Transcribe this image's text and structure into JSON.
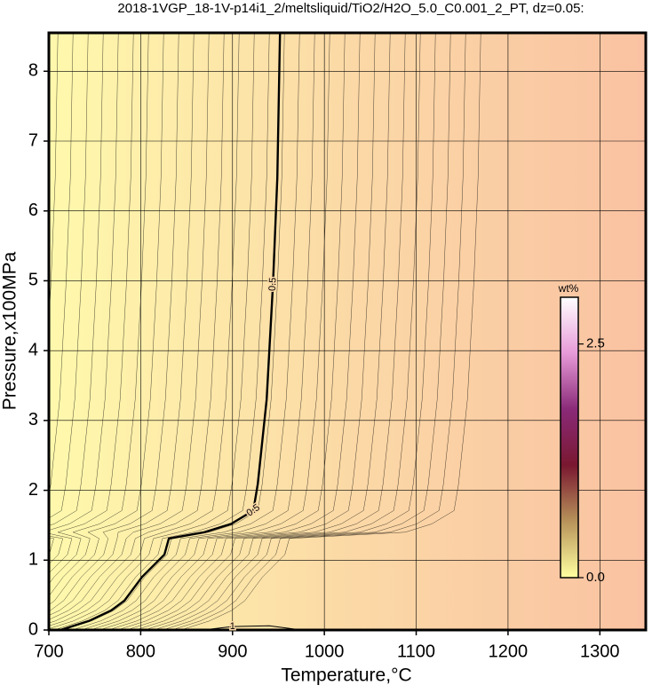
{
  "chart_data": {
    "type": "contour",
    "title": "2018-1VGP_18-1V-p14i1_2/meltsliquid/TiO2/H2O_5.0_C0.001_2_PT, dz=0.05:",
    "x_label": "Temperature,°C",
    "y_label": "Pressure,x100MPa",
    "xlim": [
      700,
      1350
    ],
    "ylim": [
      0,
      8.55
    ],
    "xticks": [
      700,
      800,
      900,
      1000,
      1100,
      1200,
      1300
    ],
    "yticks": [
      0,
      1,
      2,
      3,
      4,
      5,
      6,
      7,
      8
    ],
    "grid": true,
    "field_colors": [
      "#fff9ac",
      "#fbd9a6",
      "#fac2a2"
    ],
    "contours": [
      {
        "level": 0.5,
        "color": "#000000",
        "x": [
          712.6,
          743.6,
          767.8,
          782.3,
          801.6,
          825.8,
          830.7,
          869.4,
          898.5,
          922.7,
          927.5,
          937.2,
          944,
          948.8,
          951.7
        ],
        "y": [
          0,
          0.13,
          0.28,
          0.42,
          0.76,
          1.08,
          1.31,
          1.4,
          1.52,
          1.71,
          2.09,
          3.3,
          4.95,
          6.47,
          8.54
        ]
      },
      {
        "level": 1,
        "color": "#000000",
        "x": [
          868,
          900,
          940,
          975
        ],
        "y": [
          0,
          0.05,
          0.06,
          0
        ]
      }
    ],
    "colorbar": {
      "label": "wt%",
      "lim": [
        0,
        3.0
      ],
      "ticks": [
        {
          "value": 0,
          "label": "0.0"
        },
        {
          "value": 2.5,
          "label": "2.5"
        }
      ],
      "colors": [
        "#ffffa0",
        "#b8935a",
        "#7a1830",
        "#8a2a78",
        "#e79ad8",
        "#ffffff"
      ]
    }
  }
}
